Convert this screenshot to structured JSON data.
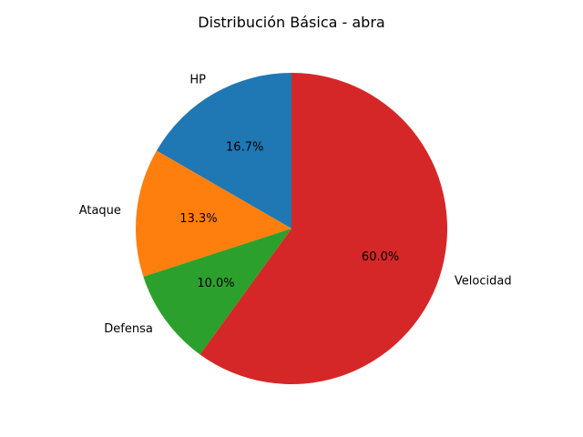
{
  "chart_data": {
    "type": "pie",
    "title": "Distribución Básica - abra",
    "categories": [
      "HP",
      "Ataque",
      "Defensa",
      "Velocidad"
    ],
    "values": [
      25,
      20,
      15,
      90
    ],
    "percent_labels": [
      "16.7%",
      "13.3%",
      "10.0%",
      "60.0%"
    ],
    "colors": [
      "#1f77b4",
      "#ff7f0e",
      "#2ca02c",
      "#d62728"
    ],
    "start_angle": 90,
    "direction": "counterclockwise"
  }
}
